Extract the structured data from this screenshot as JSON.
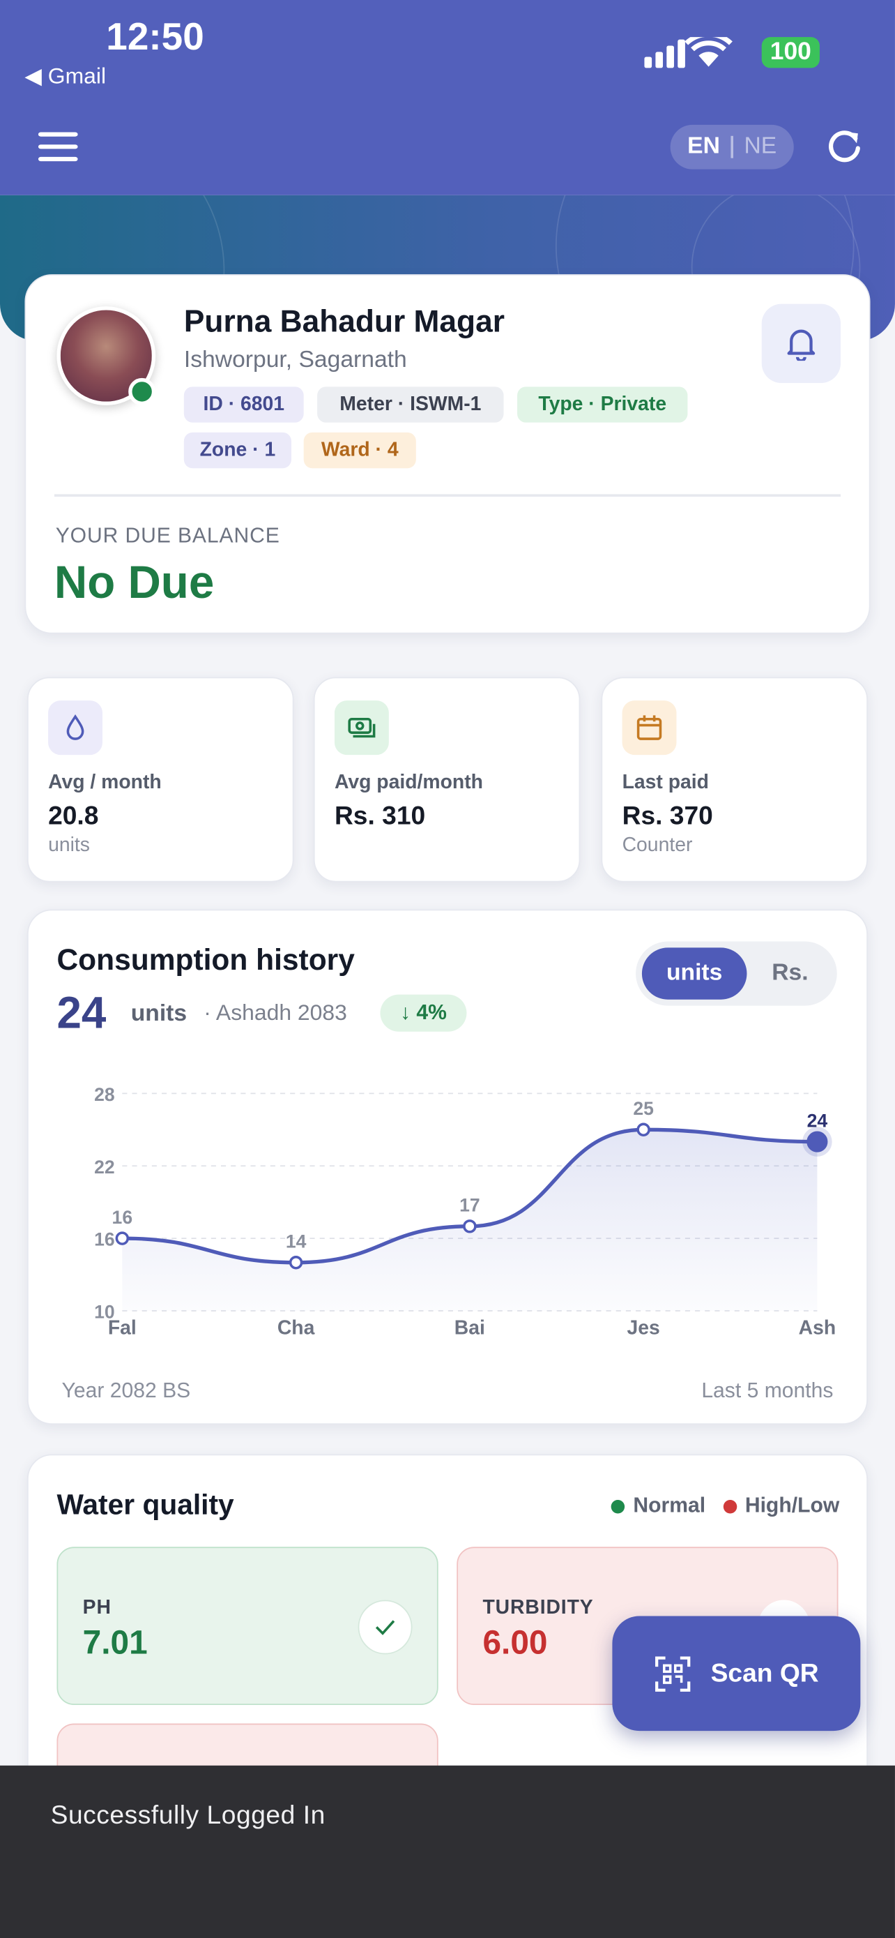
{
  "status_bar": {
    "time": "12:50",
    "back_app": "◀ Gmail",
    "battery": "100"
  },
  "header": {
    "lang_en": "EN",
    "lang_ne": "NE"
  },
  "profile": {
    "name": "Purna Bahadur Magar",
    "location": "Ishworpur, Sagarnath",
    "tags": [
      "ID · 6801",
      "Meter · ISWM-1",
      "Type · Private",
      "Zone · 1",
      "Ward · 4"
    ],
    "due_label": "YOUR DUE BALANCE",
    "due_value": "No Due"
  },
  "stats": [
    {
      "label": "Avg / month",
      "value": "20.8",
      "unit": "units"
    },
    {
      "label": "Avg paid/month",
      "value": "Rs. 310"
    },
    {
      "label": "Last paid",
      "value": "Rs. 370",
      "unit": "Counter"
    }
  ],
  "consumption": {
    "title": "Consumption history",
    "current_value": 24,
    "current_unit": "units",
    "period": "· Ashadh 2083",
    "change": "↓ 4%",
    "toggle": [
      "units",
      "Rs."
    ],
    "footer_left": "Year 2082 BS",
    "footer_right": "Last 5 months",
    "chart": {
      "type": "line",
      "categories": [
        "Fal",
        "Cha",
        "Bai",
        "Jes",
        "Ash"
      ],
      "values": [
        16,
        14,
        17,
        25,
        24
      ],
      "ylim": [
        10,
        28
      ],
      "yticks": [
        10,
        16,
        22,
        28
      ],
      "color": "#4f5bb8",
      "grid": true
    }
  },
  "water_quality": {
    "title": "Water quality",
    "legend": [
      {
        "name": "Normal",
        "color": "#1e8a4c"
      },
      {
        "name": "High/Low",
        "color": "#d03a3a"
      }
    ],
    "readings": [
      {
        "label": "PH",
        "value": "7.01"
      },
      {
        "label": "TURBIDITY",
        "value": "6.00"
      }
    ]
  },
  "fab": "Scan QR",
  "toast": "Successfully Logged In"
}
